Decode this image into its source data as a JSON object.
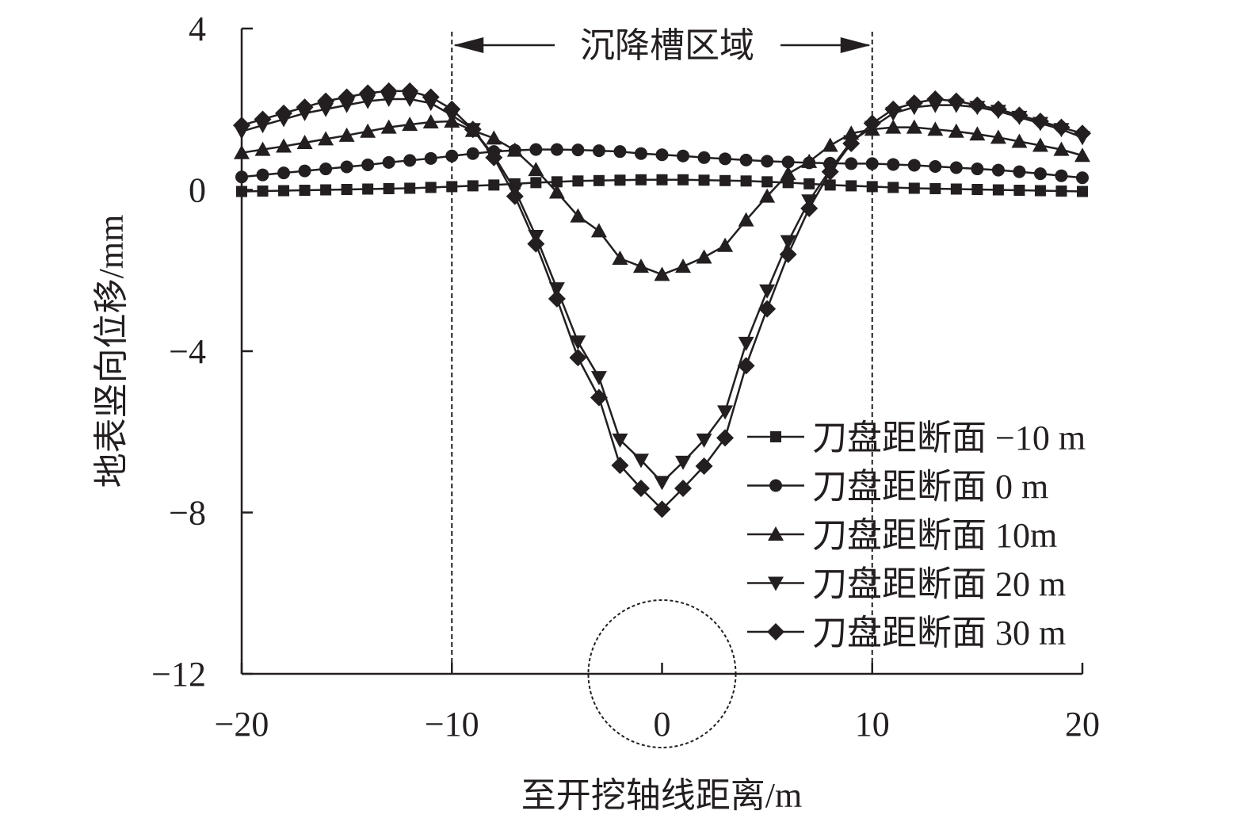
{
  "chart_data": {
    "type": "line",
    "title": "",
    "xlabel": "至开挖轴线距离/m",
    "ylabel": "地表竖向位移/mm",
    "xlim": [
      -20,
      20
    ],
    "ylim": [
      -12,
      4
    ],
    "xticks": [
      "−20",
      "−10",
      "0",
      "10",
      "20"
    ],
    "xtick_values": [
      -20,
      -10,
      0,
      10,
      20
    ],
    "yticks": [
      "4",
      "0",
      "−4",
      "−8",
      "−12"
    ],
    "ytick_values": [
      4,
      0,
      -4,
      -8,
      -12
    ],
    "grid": false,
    "legend_position": "right",
    "annotation": {
      "text": "沉降槽区域",
      "x_from": -10,
      "x_to": 10
    },
    "x": [
      -20,
      -19,
      -18,
      -17,
      -16,
      -15,
      -14,
      -13,
      -12,
      -11,
      -10,
      -9,
      -8,
      -7,
      -6,
      -5,
      -4,
      -3,
      -2,
      -1,
      0,
      1,
      2,
      3,
      4,
      5,
      6,
      7,
      8,
      9,
      10,
      11,
      12,
      13,
      14,
      15,
      16,
      17,
      18,
      19,
      20
    ],
    "series": [
      {
        "name": "刀盘距断面 −10 m",
        "marker": "square",
        "values": [
          -0.04,
          -0.03,
          -0.02,
          -0.01,
          0,
          0.01,
          0.02,
          0.03,
          0.04,
          0.06,
          0.08,
          0.1,
          0.12,
          0.15,
          0.18,
          0.2,
          0.22,
          0.23,
          0.24,
          0.25,
          0.25,
          0.25,
          0.24,
          0.23,
          0.22,
          0.2,
          0.18,
          0.15,
          0.12,
          0.1,
          0.08,
          0.06,
          0.04,
          0.03,
          0.02,
          0.01,
          0,
          -0.01,
          -0.02,
          -0.03,
          -0.04
        ]
      },
      {
        "name": "刀盘距断面 0 m",
        "marker": "circle",
        "values": [
          0.32,
          0.37,
          0.42,
          0.47,
          0.52,
          0.57,
          0.62,
          0.68,
          0.73,
          0.78,
          0.84,
          0.9,
          0.95,
          0.98,
          1.0,
          1.0,
          0.99,
          0.97,
          0.95,
          0.9,
          0.87,
          0.84,
          0.8,
          0.77,
          0.74,
          0.71,
          0.69,
          0.67,
          0.66,
          0.65,
          0.65,
          0.63,
          0.61,
          0.58,
          0.55,
          0.52,
          0.49,
          0.45,
          0.4,
          0.35,
          0.3
        ]
      },
      {
        "name": "刀盘距断面 10m",
        "marker": "triangle-up",
        "values": [
          0.92,
          1.0,
          1.08,
          1.17,
          1.26,
          1.35,
          1.45,
          1.55,
          1.62,
          1.68,
          1.7,
          1.47,
          1.28,
          0.98,
          0.5,
          -0.06,
          -0.65,
          -1.02,
          -1.7,
          -1.9,
          -2.1,
          -1.9,
          -1.67,
          -1.38,
          -0.75,
          -0.16,
          0.4,
          0.7,
          1.1,
          1.4,
          1.5,
          1.55,
          1.55,
          1.5,
          1.45,
          1.38,
          1.3,
          1.2,
          1.1,
          1.0,
          0.85
        ]
      },
      {
        "name": "刀盘距断面 20 m",
        "marker": "triangle-down",
        "values": [
          1.45,
          1.6,
          1.75,
          1.9,
          2.0,
          2.1,
          2.2,
          2.25,
          2.25,
          2.15,
          1.85,
          1.5,
          0.85,
          0.0,
          -1.15,
          -2.45,
          -3.77,
          -4.65,
          -6.2,
          -6.7,
          -7.25,
          -6.75,
          -6.2,
          -5.5,
          -3.8,
          -2.5,
          -1.28,
          -0.27,
          0.5,
          1.2,
          1.55,
          1.9,
          2.05,
          2.1,
          2.1,
          2.05,
          1.95,
          1.8,
          1.65,
          1.5,
          1.3
        ]
      },
      {
        "name": "刀盘距断面 30 m",
        "marker": "diamond",
        "values": [
          1.6,
          1.75,
          1.9,
          2.05,
          2.2,
          2.3,
          2.4,
          2.45,
          2.45,
          2.3,
          2.0,
          1.5,
          0.8,
          -0.16,
          -1.34,
          -2.7,
          -4.16,
          -5.15,
          -6.83,
          -7.4,
          -7.92,
          -7.4,
          -6.85,
          -6.15,
          -4.36,
          -2.95,
          -1.6,
          -0.46,
          0.45,
          1.15,
          1.65,
          2.0,
          2.15,
          2.25,
          2.2,
          2.1,
          2.0,
          1.85,
          1.7,
          1.55,
          1.4
        ]
      }
    ]
  },
  "colors": {
    "ink": "#231f20"
  }
}
